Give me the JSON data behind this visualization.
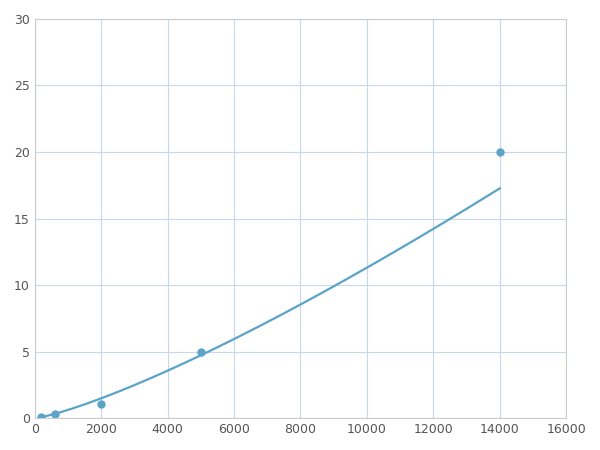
{
  "x_points": [
    200,
    600,
    2000,
    5000,
    14000
  ],
  "y_points": [
    0.1,
    0.3,
    1.1,
    5.0,
    20.0
  ],
  "line_color": "#5ba3c9",
  "marker_color": "#5ba3c9",
  "marker_size": 5,
  "marker_style": "o",
  "line_width": 1.6,
  "xlim": [
    0,
    16000
  ],
  "ylim": [
    0,
    30
  ],
  "xticks": [
    0,
    2000,
    4000,
    6000,
    8000,
    10000,
    12000,
    14000,
    16000
  ],
  "yticks": [
    0,
    5,
    10,
    15,
    20,
    25,
    30
  ],
  "grid_color": "#c8d8e8",
  "background_color": "#ffffff",
  "figure_background": "#ffffff"
}
